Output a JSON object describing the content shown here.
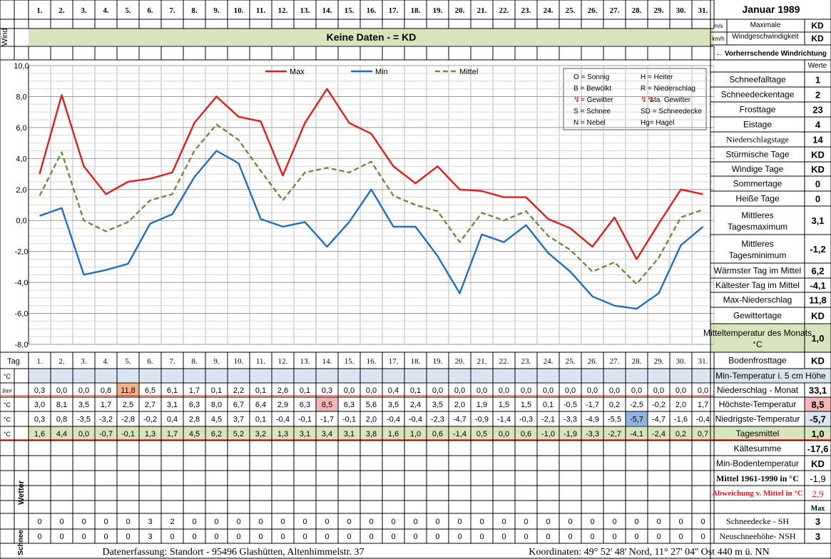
{
  "header": {
    "title": "Januar 1989",
    "days": [
      "1.",
      "2.",
      "3.",
      "4.",
      "5.",
      "6.",
      "7.",
      "8.",
      "9.",
      "10.",
      "11.",
      "12.",
      "13.",
      "14.",
      "15.",
      "16.",
      "17.",
      "18.",
      "19.",
      "20.",
      "21.",
      "22.",
      "23.",
      "24.",
      "25.",
      "26.",
      "27.",
      "28.",
      "29.",
      "30.",
      "31."
    ],
    "tag_label": "Tag",
    "wind_label": "Wind",
    "wind_banner": "Keine Daten -  = KD",
    "unit_ms": "m/s",
    "unit_kmh": "km/h",
    "max_wind_label_1": "Maximale",
    "max_wind_label_2": "Windgeschwindigkeit",
    "max_wind_ms": "KD",
    "max_wind_kmh": "KD",
    "wind_direction_label": "← Vorherrschende Windrichtung",
    "werte_label": "Werte"
  },
  "legend_codes": [
    [
      "O = Sonnig",
      "H = Heiter"
    ],
    [
      "B = Bewölkt",
      "R = Niederschlag"
    ],
    [
      "= Gewitter",
      "sta. Gewitter"
    ],
    [
      "S = Schnee",
      "SD = Schneedecke"
    ],
    [
      "N = Nebel",
      "Hg= Hagel"
    ]
  ],
  "stats": [
    {
      "label": "Schneefalltage",
      "value": "1"
    },
    {
      "label": "Schneedeckentage",
      "value": "2"
    },
    {
      "label": "Frosttage",
      "value": "23"
    },
    {
      "label": "Eistage",
      "value": "4"
    },
    {
      "label": "Niederschlagstage",
      "value": "14"
    },
    {
      "label": "Stürmische Tage",
      "value": "KD"
    },
    {
      "label": "Windige Tage",
      "value": "KD"
    },
    {
      "label": "Sommertage",
      "value": "0"
    },
    {
      "label": "Heiße Tage",
      "value": "0"
    },
    {
      "label": "Mittleres Tagesmaximum",
      "value": "3,1"
    },
    {
      "label": "Mittleres Tagesminimum",
      "value": "-1,2"
    },
    {
      "label": "Wärmster Tag im Mittel",
      "value": "6,2"
    },
    {
      "label": "Kältester Tag im Mittel",
      "value": "-4,1"
    },
    {
      "label": "Max-Niederschlag",
      "value": "11,8"
    },
    {
      "label": "Gewittertage",
      "value": "KD"
    },
    {
      "label": "Mitteltemperatur des Monats °C",
      "value": "1,0"
    },
    {
      "label": "Bodenfrosttage",
      "value": "KD"
    }
  ],
  "table": {
    "rows": [
      {
        "unit": "°C",
        "label": "Min-Temperatur i. 5 cm Höhe",
        "summary": "",
        "values": []
      },
      {
        "unit": "l/m²",
        "label": "Niederschlag - Monat",
        "summary": "33,1",
        "values": [
          "0,3",
          "0,0",
          "0,0",
          "0,8",
          "11,8",
          "6,5",
          "6,1",
          "1,7",
          "0,1",
          "2,2",
          "0,1",
          "2,6",
          "0,1",
          "0,3",
          "0,0",
          "0,0",
          "0,4",
          "0,1",
          "0,0",
          "0,0",
          "0,0",
          "0,0",
          "0,0",
          "0,0",
          "0,0",
          "0,0",
          "0,0",
          "0,0",
          "0,0",
          "0,0",
          "0,0"
        ]
      },
      {
        "unit": "°C",
        "label": "Höchste-Temperatur",
        "summary": "8,5",
        "values": [
          "3,0",
          "8,1",
          "3,5",
          "1,7",
          "2,5",
          "2,7",
          "3,1",
          "6,3",
          "8,0",
          "6,7",
          "6,4",
          "2,9",
          "6,3",
          "8,5",
          "6,3",
          "5,6",
          "3,5",
          "2,4",
          "3,5",
          "2,0",
          "1,9",
          "1,5",
          "1,5",
          "0,1",
          "-0,5",
          "-1,7",
          "0,2",
          "-2,5",
          "-0,2",
          "2,0",
          "1,7"
        ]
      },
      {
        "unit": "°C",
        "label": "Niedrigste-Temperatur",
        "summary": "-5,7",
        "values": [
          "0,3",
          "0,8",
          "-3,5",
          "-3,2",
          "-2,8",
          "-0,2",
          "0,4",
          "2,8",
          "4,5",
          "3,7",
          "0,1",
          "-0,4",
          "-0,1",
          "-1,7",
          "-0,1",
          "2,0",
          "-0,4",
          "-0,4",
          "-2,3",
          "-4,7",
          "-0,9",
          "-1,4",
          "-0,3",
          "-2,1",
          "-3,3",
          "-4,9",
          "-5,5",
          "-5,7",
          "-4,7",
          "-1,6",
          "-0,4"
        ]
      },
      {
        "unit": "°C",
        "label": "Tagesmittel",
        "summary": "1,0",
        "values": [
          "1,6",
          "4,4",
          "0,0",
          "-0,7",
          "-0,1",
          "1,3",
          "1,7",
          "4,5",
          "6,2",
          "5,2",
          "3,2",
          "1,3",
          "3,1",
          "3,4",
          "3,1",
          "3,8",
          "1,6",
          "1,0",
          "0,6",
          "-1,4",
          "0,5",
          "0,0",
          "0,6",
          "-1,0",
          "-1,9",
          "-3,3",
          "-2,7",
          "-4,1",
          "-2,4",
          "0,2",
          "0,7"
        ]
      }
    ],
    "kaeltesumme_label": "Kältesumme",
    "kaeltesumme_value": "-17,6",
    "boden_label": "Min-Bodentemperatur",
    "boden_value": "KD",
    "mittel_label": "Mittel 1961-1990 in °C",
    "mittel_value": "-1,9",
    "abw_label": "Abweichung v. Mittel in °C",
    "abw_value": "2,9",
    "max_label": "Max",
    "wetter_label": "Wetter",
    "schnee_label": "Schnee",
    "schnee_rows": [
      {
        "label": "Schneedecke -  SH",
        "summary": "3",
        "values": [
          "0",
          "0",
          "0",
          "0",
          "0",
          "3",
          "2",
          "0",
          "0",
          "0",
          "0",
          "0",
          "0",
          "0",
          "0",
          "0",
          "0",
          "0",
          "0",
          "0",
          "0",
          "0",
          "0",
          "0",
          "0",
          "0",
          "0",
          "0",
          "0",
          "0",
          "0"
        ]
      },
      {
        "label": "Neuschneehöhe- NSH",
        "summary": "3",
        "values": [
          "0",
          "0",
          "0",
          "0",
          "0",
          "3",
          "0",
          "0",
          "0",
          "0",
          "0",
          "0",
          "0",
          "0",
          "0",
          "0",
          "0",
          "0",
          "0",
          "0",
          "0",
          "0",
          "0",
          "0",
          "0",
          "0",
          "0",
          "0",
          "0",
          "0",
          "0"
        ]
      }
    ]
  },
  "footer": {
    "left": "Datenerfassung:  Standort -  95496  Glashütten, Altenhimmelstr. 37",
    "right": "Koordinaten:  49° 52' 48' Nord,  11° 27' 04'' Ost   440 m ü. NN"
  },
  "colors": {
    "max": "#e31b1b",
    "min": "#1f6fc0",
    "mittel": "#6f8a3a",
    "band_green": "#d8e4bc",
    "band_blue": "#dbe5f1",
    "orange": "#f4b183",
    "pink": "#f4b6b6",
    "blue_cell": "#8db4e2"
  },
  "chart_data": {
    "type": "line",
    "x": [
      1,
      2,
      3,
      4,
      5,
      6,
      7,
      8,
      9,
      10,
      11,
      12,
      13,
      14,
      15,
      16,
      17,
      18,
      19,
      20,
      21,
      22,
      23,
      24,
      25,
      26,
      27,
      28,
      29,
      30,
      31
    ],
    "series": [
      {
        "name": "Max",
        "values": [
          3.0,
          8.1,
          3.5,
          1.7,
          2.5,
          2.7,
          3.1,
          6.3,
          8.0,
          6.7,
          6.4,
          2.9,
          6.3,
          8.5,
          6.3,
          5.6,
          3.5,
          2.4,
          3.5,
          2.0,
          1.9,
          1.5,
          1.5,
          0.1,
          -0.5,
          -1.7,
          0.2,
          -2.5,
          -0.2,
          2.0,
          1.7
        ]
      },
      {
        "name": "Min",
        "values": [
          0.3,
          0.8,
          -3.5,
          -3.2,
          -2.8,
          -0.2,
          0.4,
          2.8,
          4.5,
          3.7,
          0.1,
          -0.4,
          -0.1,
          -1.7,
          -0.1,
          2.0,
          -0.4,
          -0.4,
          -2.3,
          -4.7,
          -0.9,
          -1.4,
          -0.3,
          -2.1,
          -3.3,
          -4.9,
          -5.5,
          -5.7,
          -4.7,
          -1.6,
          -0.4
        ]
      },
      {
        "name": "Mittel",
        "values": [
          1.6,
          4.4,
          0.0,
          -0.7,
          -0.1,
          1.3,
          1.7,
          4.5,
          6.2,
          5.2,
          3.2,
          1.3,
          3.1,
          3.4,
          3.1,
          3.8,
          1.6,
          1.0,
          0.6,
          -1.4,
          0.5,
          0.0,
          0.6,
          -1.0,
          -1.9,
          -3.3,
          -2.7,
          -4.1,
          -2.4,
          0.2,
          0.7
        ]
      }
    ],
    "y_ticks": [
      "10,0",
      "8,0",
      "6,0",
      "4,0",
      "2,0",
      "0,0",
      "-2,0",
      "-4,0",
      "-6,0",
      "-8,0"
    ],
    "ylim": [
      -8,
      10
    ],
    "grid": true,
    "legend": "top"
  }
}
